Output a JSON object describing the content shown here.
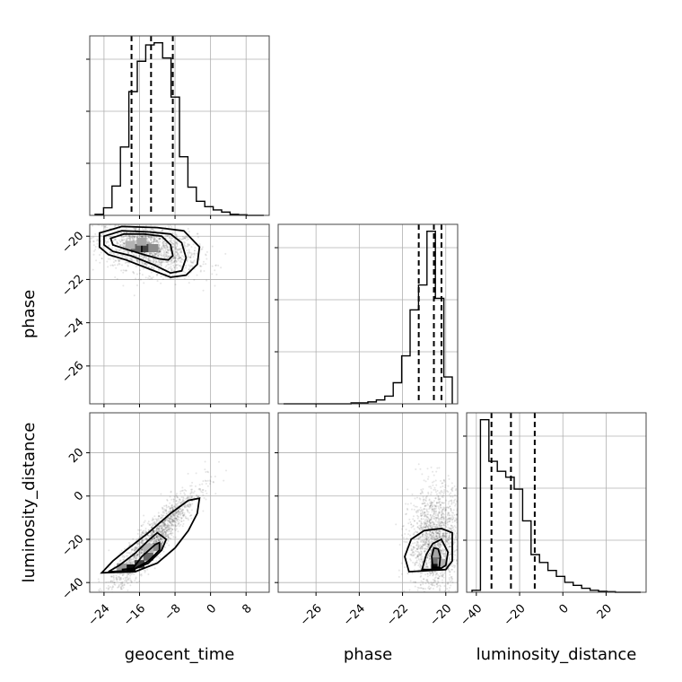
{
  "chart_data": {
    "type": "corner",
    "parameters": [
      "geocent_time",
      "phase",
      "luminosity_distance"
    ],
    "axis_labels": {
      "geocent_time": "geocent_time",
      "phase": "phase",
      "luminosity_distance": "luminosity_distance"
    },
    "ranges": {
      "geocent_time": [
        -26,
        12
      ],
      "phase": [
        -27.5,
        -19.7
      ],
      "luminosity_distance": [
        -42,
        36
      ]
    },
    "ticks": {
      "geocent_time": [
        -24,
        -16,
        -8,
        0,
        8
      ],
      "phase": [
        -26,
        -24,
        -22,
        -20
      ],
      "luminosity_distance": [
        -40,
        -20,
        0,
        20
      ]
    },
    "quantiles": {
      "geocent_time": [
        -17.8,
        -13.4,
        -8.5
      ],
      "phase": [
        -21.25,
        -20.55,
        -20.2
      ],
      "luminosity_distance": [
        -33,
        -24,
        -13
      ]
    },
    "histograms": {
      "geocent_time": {
        "edges": [
          -26,
          -24.1,
          -22.2,
          -20.3,
          -18.4,
          -16.5,
          -14.6,
          -12.7,
          -10.8,
          -8.9,
          -7,
          -5.1,
          -3.2,
          -1.3,
          0.6,
          2.5,
          4.4,
          6.3,
          8.2,
          10.1,
          12
        ],
        "counts": [
          0.5,
          3.5,
          13.5,
          31.5,
          57,
          71,
          78.5,
          79.5,
          72.5,
          54.5,
          27,
          13,
          6.5,
          4,
          2.5,
          1.5,
          0.5,
          0.3,
          0,
          0
        ]
      },
      "phase": {
        "edges": [
          -27.5,
          -27.11,
          -26.72,
          -26.33,
          -25.94,
          -25.55,
          -25.16,
          -24.77,
          -24.38,
          -23.99,
          -23.6,
          -23.21,
          -22.82,
          -22.43,
          -22.04,
          -21.65,
          -21.26,
          -20.87,
          -20.48,
          -20.09,
          -19.7
        ],
        "counts": [
          0,
          0,
          0,
          0,
          0,
          0,
          0,
          0,
          0.5,
          0.5,
          1,
          2,
          4,
          11,
          25,
          49,
          62,
          90,
          55,
          14
        ]
      },
      "luminosity_distance": {
        "edges": [
          -42,
          -38.1,
          -34.2,
          -30.3,
          -26.4,
          -22.5,
          -18.6,
          -14.7,
          -10.8,
          -6.9,
          -3,
          0.9,
          4.8,
          8.7,
          12.6,
          16.5,
          20.4,
          24.3,
          28.2,
          32.1,
          36
        ],
        "counts": [
          1,
          87,
          66,
          61,
          58,
          52,
          36,
          19,
          15,
          11,
          8,
          5,
          3.5,
          2,
          1,
          0.5,
          0.3,
          0,
          0,
          0
        ]
      }
    },
    "density_2d": {
      "geocent_time_vs_phase": {
        "sample_center": [
          -14,
          -20.6
        ],
        "sample_spread": [
          5.5,
          0.6
        ],
        "correlation": -0.35,
        "contours": [
          [
            [
              -22.5,
              -20.1
            ],
            [
              -19.5,
              -19.9
            ],
            [
              -15,
              -19.9
            ],
            [
              -11,
              -20
            ],
            [
              -9,
              -20.4
            ],
            [
              -8.5,
              -20.9
            ],
            [
              -9.5,
              -21.1
            ],
            [
              -11.5,
              -21.05
            ],
            [
              -15,
              -20.85
            ],
            [
              -19,
              -20.6
            ],
            [
              -22,
              -20.4
            ],
            [
              -22.5,
              -20.1
            ]
          ],
          [
            [
              -24,
              -20
            ],
            [
              -20,
              -19.75
            ],
            [
              -14,
              -19.8
            ],
            [
              -9,
              -19.9
            ],
            [
              -6.5,
              -20.3
            ],
            [
              -5.5,
              -21
            ],
            [
              -6.5,
              -21.6
            ],
            [
              -9,
              -21.7
            ],
            [
              -13,
              -21.3
            ],
            [
              -18,
              -20.9
            ],
            [
              -22,
              -20.7
            ],
            [
              -24,
              -20.4
            ],
            [
              -24,
              -20
            ]
          ],
          [
            [
              -25,
              -19.85
            ],
            [
              -20,
              -19.55
            ],
            [
              -12,
              -19.6
            ],
            [
              -6,
              -19.75
            ],
            [
              -2.5,
              -20.5
            ],
            [
              -3,
              -21.3
            ],
            [
              -5.5,
              -21.8
            ],
            [
              -9,
              -21.9
            ],
            [
              -14,
              -21.5
            ],
            [
              -19,
              -21.1
            ],
            [
              -23,
              -20.85
            ],
            [
              -25,
              -20.5
            ],
            [
              -25,
              -19.85
            ]
          ]
        ],
        "dense_cells": [
          [
            -15.5,
            -20.55,
            0.95
          ],
          [
            -14.2,
            -20.55,
            0.75
          ],
          [
            -16.8,
            -20.55,
            0.6
          ],
          [
            -12.9,
            -20.55,
            0.45
          ],
          [
            -18.1,
            -20.4,
            0.3
          ],
          [
            -15.5,
            -20.25,
            0.35
          ]
        ]
      },
      "geocent_time_vs_luminosity_distance": {
        "sample_center": [
          -13,
          -20
        ],
        "sample_spread": [
          5,
          12
        ],
        "correlation": 0.92,
        "contours": [
          [
            [
              -20,
              -34
            ],
            [
              -17.5,
              -33.5
            ],
            [
              -15.5,
              -28
            ],
            [
              -12.5,
              -22.5
            ],
            [
              -11.5,
              -21.5
            ],
            [
              -11.5,
              -25
            ],
            [
              -14,
              -30
            ],
            [
              -17,
              -33.5
            ],
            [
              -20,
              -34
            ]
          ],
          [
            [
              -23,
              -35
            ],
            [
              -18,
              -34.5
            ],
            [
              -14,
              -31
            ],
            [
              -11,
              -25
            ],
            [
              -10,
              -20
            ],
            [
              -12,
              -17
            ],
            [
              -14,
              -20.5
            ],
            [
              -17,
              -26.5
            ],
            [
              -20.5,
              -32
            ],
            [
              -23,
              -35
            ]
          ],
          [
            [
              -24.5,
              -35.5
            ],
            [
              -17,
              -35
            ],
            [
              -12,
              -31
            ],
            [
              -8,
              -24
            ],
            [
              -5,
              -16
            ],
            [
              -3,
              -8
            ],
            [
              -2.5,
              -1
            ],
            [
              -5,
              -2
            ],
            [
              -9,
              -8
            ],
            [
              -14,
              -17
            ],
            [
              -19,
              -25
            ],
            [
              -22,
              -30
            ],
            [
              -24.5,
              -35.5
            ]
          ]
        ],
        "dense_cells": [
          [
            -18,
            -33.5,
            0.95
          ],
          [
            -16,
            -31.5,
            0.75
          ],
          [
            -14,
            -28,
            0.6
          ],
          [
            -12,
            -23.5,
            0.45
          ],
          [
            -14,
            -24,
            0.3
          ],
          [
            -20,
            -33,
            0.4
          ]
        ]
      },
      "phase_vs_luminosity_distance": {
        "sample_center": [
          -20.5,
          -20
        ],
        "sample_spread": [
          0.6,
          12
        ],
        "correlation": 0.1,
        "contours": [
          [
            [
              -20.6,
              -33
            ],
            [
              -20.3,
              -33
            ],
            [
              -20.25,
              -28
            ],
            [
              -20.35,
              -24.5
            ],
            [
              -20.55,
              -24
            ],
            [
              -20.65,
              -28
            ],
            [
              -20.6,
              -33
            ]
          ],
          [
            [
              -21.1,
              -34
            ],
            [
              -20.3,
              -34
            ],
            [
              -20,
              -32
            ],
            [
              -19.9,
              -26
            ],
            [
              -20.2,
              -20
            ],
            [
              -20.6,
              -22
            ],
            [
              -20.9,
              -27
            ],
            [
              -21.1,
              -34
            ]
          ],
          [
            [
              -21.7,
              -35
            ],
            [
              -21.9,
              -28
            ],
            [
              -21.6,
              -20
            ],
            [
              -21,
              -16
            ],
            [
              -20.2,
              -15
            ],
            [
              -19.7,
              -17
            ],
            [
              -19.7,
              -30
            ],
            [
              -20,
              -34
            ],
            [
              -21.7,
              -35
            ]
          ]
        ],
        "dense_cells": [
          [
            -20.45,
            -32,
            0.95
          ],
          [
            -20.45,
            -29.5,
            0.55
          ],
          [
            -20.45,
            -26.5,
            0.35
          ],
          [
            -20.15,
            -31,
            0.3
          ]
        ]
      }
    }
  }
}
